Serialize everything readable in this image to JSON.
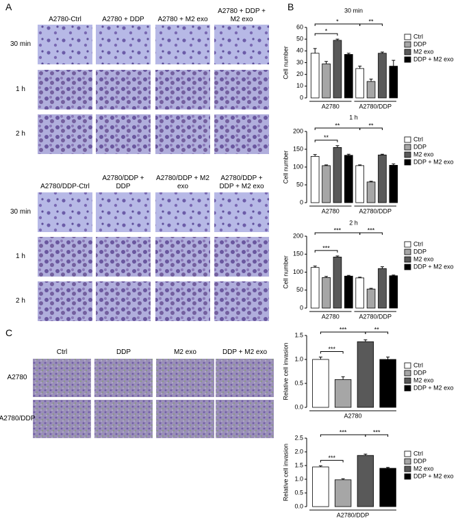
{
  "panel_labels": [
    "A",
    "B",
    "C"
  ],
  "panel_a": {
    "top": {
      "columns": [
        "A2780-Ctrl",
        "A2780 + DDP",
        "A2780 + M2 exo",
        "A2780 + DDP + M2 exo"
      ],
      "rows": [
        "30 min",
        "1 h",
        "2 h"
      ]
    },
    "bottom": {
      "columns": [
        "A2780/DDP-Ctrl",
        "A2780/DDP + DDP",
        "A2780/DDP + M2 exo",
        "A2780/DDP + DDP + M2 exo"
      ],
      "rows": [
        "30 min",
        "1 h",
        "2 h"
      ]
    }
  },
  "panel_c": {
    "columns": [
      "Ctrl",
      "DDP",
      "M2 exo",
      "DDP + M2 exo"
    ],
    "rows": [
      "A2780",
      "A2780/DDP"
    ]
  },
  "chart_data": [
    {
      "type": "bar",
      "title": "30 min",
      "ylabel": "Cell number",
      "categories": [
        "A2780",
        "A2780/DDP"
      ],
      "series": [
        {
          "name": "Ctrl",
          "color": "#ffffff",
          "values": [
            38,
            25
          ],
          "errors": [
            4,
            2
          ]
        },
        {
          "name": "DDP",
          "color": "#a6a6a6",
          "values": [
            29,
            14
          ],
          "errors": [
            2,
            2
          ]
        },
        {
          "name": "M2 exo",
          "color": "#595959",
          "values": [
            49,
            38
          ],
          "errors": [
            1,
            1
          ]
        },
        {
          "name": "DDP + M2 exo",
          "color": "#000000",
          "values": [
            37,
            27
          ],
          "errors": [
            1,
            5
          ]
        }
      ],
      "ylim": [
        0,
        60
      ],
      "yticks": [
        0,
        10,
        20,
        30,
        40,
        50,
        60
      ],
      "annotations": [
        "*",
        "*",
        "**"
      ]
    },
    {
      "type": "bar",
      "title": "1 h",
      "ylabel": "Cell number",
      "categories": [
        "A2780",
        "A2780/DDP"
      ],
      "series": [
        {
          "name": "Ctrl",
          "color": "#ffffff",
          "values": [
            130,
            104
          ],
          "errors": [
            5,
            2
          ]
        },
        {
          "name": "DDP",
          "color": "#a6a6a6",
          "values": [
            104,
            58
          ],
          "errors": [
            2,
            2
          ]
        },
        {
          "name": "M2 exo",
          "color": "#595959",
          "values": [
            155,
            134
          ],
          "errors": [
            5,
            2
          ]
        },
        {
          "name": "DDP + M2 exo",
          "color": "#000000",
          "values": [
            133,
            105
          ],
          "errors": [
            3,
            4
          ]
        }
      ],
      "ylim": [
        0,
        200
      ],
      "yticks": [
        0,
        50,
        100,
        150,
        200
      ],
      "annotations": [
        "**",
        "**",
        "**"
      ]
    },
    {
      "type": "bar",
      "title": "2 h",
      "ylabel": "Cell number",
      "categories": [
        "A2780",
        "A2780/DDP"
      ],
      "series": [
        {
          "name": "Ctrl",
          "color": "#ffffff",
          "values": [
            113,
            84
          ],
          "errors": [
            4,
            2
          ]
        },
        {
          "name": "DDP",
          "color": "#a6a6a6",
          "values": [
            85,
            53
          ],
          "errors": [
            3,
            2
          ]
        },
        {
          "name": "M2 exo",
          "color": "#595959",
          "values": [
            142,
            110
          ],
          "errors": [
            3,
            5
          ]
        },
        {
          "name": "DDP + M2 exo",
          "color": "#000000",
          "values": [
            89,
            90
          ],
          "errors": [
            2,
            2
          ]
        }
      ],
      "ylim": [
        0,
        200
      ],
      "yticks": [
        0,
        50,
        100,
        150,
        200
      ],
      "annotations": [
        "***",
        "***",
        "***"
      ]
    },
    {
      "type": "bar",
      "ylabel": "Relative cell invasion",
      "categories": [
        "A2780"
      ],
      "series": [
        {
          "name": "Ctrl",
          "color": "#ffffff",
          "values": [
            1.0
          ],
          "errors": [
            0.05
          ]
        },
        {
          "name": "DDP",
          "color": "#a6a6a6",
          "values": [
            0.58
          ],
          "errors": [
            0.06
          ]
        },
        {
          "name": "M2 exo",
          "color": "#595959",
          "values": [
            1.37
          ],
          "errors": [
            0.04
          ]
        },
        {
          "name": "DDP + M2 exo",
          "color": "#000000",
          "values": [
            1.0
          ],
          "errors": [
            0.05
          ]
        }
      ],
      "ylim": [
        0,
        1.5
      ],
      "yticks": [
        {
          "value": 0,
          "label": "0.0"
        },
        0.5,
        {
          "value": 1,
          "label": "1.0"
        },
        1.5
      ],
      "annotations": [
        "***",
        "**",
        "***"
      ]
    },
    {
      "type": "bar",
      "ylabel": "Relative cell invasion",
      "categories": [
        "A2780/DDP"
      ],
      "series": [
        {
          "name": "Ctrl",
          "color": "#ffffff",
          "values": [
            1.45
          ],
          "errors": [
            0.04
          ]
        },
        {
          "name": "DDP",
          "color": "#a6a6a6",
          "values": [
            0.98
          ],
          "errors": [
            0.04
          ]
        },
        {
          "name": "M2 exo",
          "color": "#595959",
          "values": [
            1.87
          ],
          "errors": [
            0.05
          ]
        },
        {
          "name": "DDP + M2 exo",
          "color": "#000000",
          "values": [
            1.4
          ],
          "errors": [
            0.03
          ]
        }
      ],
      "ylim": [
        0,
        2.5
      ],
      "yticks": [
        {
          "value": 0,
          "label": "0.0"
        },
        0.5,
        {
          "value": 1,
          "label": "1.0"
        },
        1.5,
        {
          "value": 2,
          "label": "2.0"
        },
        2.5
      ],
      "annotations": [
        "***",
        "***",
        "***"
      ]
    }
  ]
}
